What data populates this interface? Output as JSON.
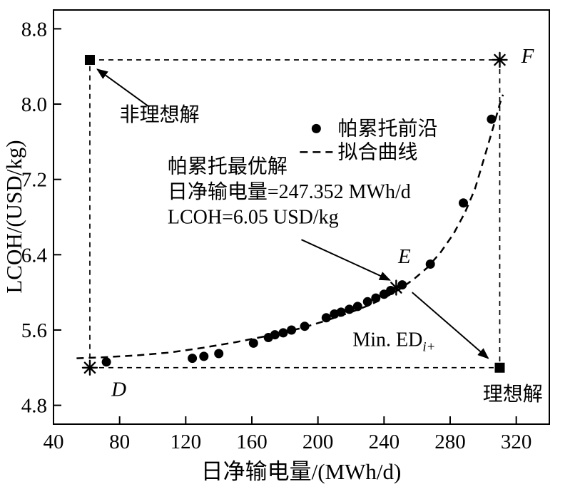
{
  "figure": {
    "background": "#ffffff",
    "ink": "#000000"
  },
  "chart_data": {
    "type": "scatter",
    "title": "",
    "xlabel": "日净输电量/(MWh/d)",
    "ylabel": "LCOH/(USD/kg)",
    "xlim": [
      40,
      340
    ],
    "ylim": [
      4.6,
      9.0
    ],
    "xticks": [
      40,
      80,
      120,
      160,
      200,
      240,
      280,
      320
    ],
    "yticks": [
      4.8,
      5.6,
      6.4,
      7.2,
      8.0,
      8.8
    ],
    "grid": false,
    "legend": {
      "sample_x": 199,
      "text_x": 212,
      "y": 7.74,
      "row_dy": 0.25,
      "items": [
        {
          "label": "帕累托前沿",
          "marker": "dot"
        },
        {
          "label": "拟合曲线",
          "marker": "dashed-line"
        }
      ]
    },
    "pareto_front": [
      [
        72,
        5.26
      ],
      [
        124,
        5.3
      ],
      [
        131,
        5.32
      ],
      [
        140,
        5.35
      ],
      [
        161,
        5.46
      ],
      [
        170,
        5.52
      ],
      [
        174,
        5.55
      ],
      [
        179,
        5.57
      ],
      [
        184,
        5.6
      ],
      [
        192,
        5.64
      ],
      [
        205,
        5.73
      ],
      [
        210,
        5.77
      ],
      [
        214,
        5.79
      ],
      [
        219,
        5.82
      ],
      [
        224,
        5.85
      ],
      [
        230,
        5.9
      ],
      [
        235,
        5.94
      ],
      [
        240,
        5.98
      ],
      [
        244,
        6.02
      ],
      [
        251,
        6.08
      ],
      [
        268,
        6.3
      ],
      [
        288,
        6.95
      ],
      [
        305,
        7.84
      ]
    ],
    "fitted_curve": [
      [
        54,
        5.3
      ],
      [
        70,
        5.31
      ],
      [
        90,
        5.33
      ],
      [
        110,
        5.36
      ],
      [
        130,
        5.41
      ],
      [
        150,
        5.47
      ],
      [
        170,
        5.54
      ],
      [
        190,
        5.62
      ],
      [
        205,
        5.7
      ],
      [
        220,
        5.79
      ],
      [
        232,
        5.87
      ],
      [
        242,
        5.96
      ],
      [
        250,
        6.04
      ],
      [
        258,
        6.14
      ],
      [
        266,
        6.26
      ],
      [
        274,
        6.42
      ],
      [
        282,
        6.62
      ],
      [
        289,
        6.85
      ],
      [
        295,
        7.1
      ],
      [
        301,
        7.45
      ],
      [
        306,
        7.75
      ],
      [
        310,
        8.0
      ],
      [
        312,
        8.1
      ]
    ],
    "bound_rect": {
      "x1": 62,
      "y1": 5.2,
      "x2": 310,
      "y2": 8.47,
      "style": "dashed"
    },
    "markers": [
      {
        "id": "non-ideal-square",
        "shape": "square",
        "x": 62,
        "y": 8.47
      },
      {
        "id": "ideal-square",
        "shape": "square",
        "x": 310,
        "y": 5.2
      },
      {
        "id": "point-D-asterisk",
        "shape": "asterisk",
        "x": 62,
        "y": 5.2
      },
      {
        "id": "point-E-asterisk",
        "shape": "asterisk",
        "x": 247.352,
        "y": 6.05
      },
      {
        "id": "point-F-asterisk",
        "shape": "asterisk",
        "x": 310,
        "y": 8.47
      }
    ],
    "pareto_optimal": {
      "x": 247.352,
      "y": 6.05,
      "label": "E"
    },
    "point_labels": [
      {
        "text": "D",
        "x": 75,
        "y": 4.9,
        "italic": true,
        "anchor": "start"
      },
      {
        "text": "E",
        "x": 248.5,
        "y": 6.31,
        "italic": true,
        "anchor": "start"
      },
      {
        "text": "F",
        "x": 323,
        "y": 8.44,
        "italic": true,
        "anchor": "start"
      }
    ],
    "annotations": [
      {
        "id": "non-ideal-label",
        "lines": [
          "非理想解"
        ],
        "x": 80,
        "y": 7.82,
        "anchor": "start",
        "line_dy": 0.27,
        "arrow": {
          "x1": 98,
          "y1": 7.97,
          "x2": 66.5,
          "y2": 8.37
        }
      },
      {
        "id": "pareto-optimal-label",
        "lines": [
          "帕累托最优解",
          "日净输电量=247.352 MWh/d",
          "LCOH=6.05 USD/kg"
        ],
        "x": 109,
        "y": 7.27,
        "anchor": "start",
        "line_dy": 0.27,
        "arrow": {
          "x1": 190,
          "y1": 6.56,
          "x2": 243.5,
          "y2": 6.13
        }
      },
      {
        "id": "min-ed-label",
        "lines": [
          "Min. ED"
        ],
        "sub": "i+",
        "x": 221,
        "y": 5.43,
        "anchor": "start",
        "line_dy": 0.27,
        "arrow": {
          "x1": 257,
          "y1": 6.0,
          "x2": 303,
          "y2": 5.3
        }
      },
      {
        "id": "ideal-label",
        "lines": [
          "理想解"
        ],
        "x": 336,
        "y": 4.85,
        "anchor": "end",
        "line_dy": 0.27
      }
    ]
  }
}
